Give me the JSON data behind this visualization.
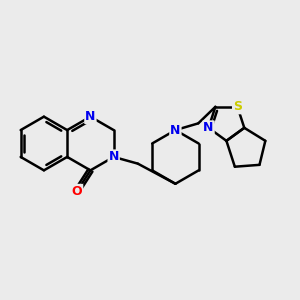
{
  "bg_color": "#ebebeb",
  "bond_color": "#000000",
  "N_color": "#0000ee",
  "O_color": "#ff0000",
  "S_color": "#cccc00",
  "bond_width": 1.8,
  "font_size_atom": 9,
  "xlim": [
    -3.0,
    3.8
  ],
  "ylim": [
    -2.0,
    2.0
  ]
}
